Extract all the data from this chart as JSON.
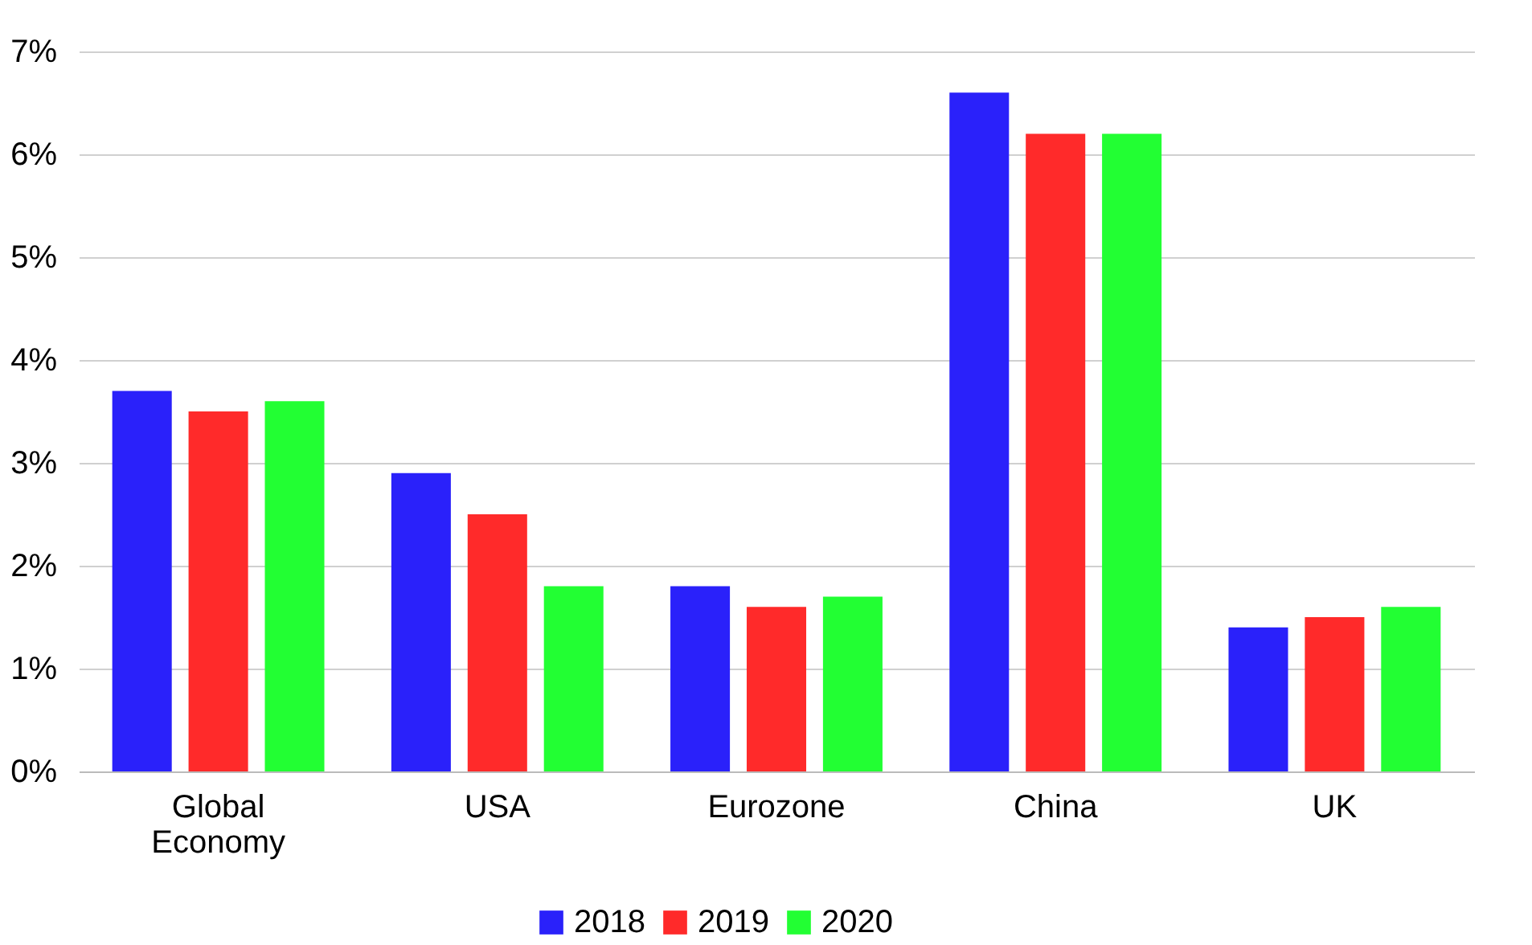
{
  "chart_data": {
    "type": "bar",
    "categories": [
      "Global Economy",
      "USA",
      "Eurozone",
      "China",
      "UK"
    ],
    "series": [
      {
        "name": "2018",
        "color": "#2a21fa",
        "values": [
          3.7,
          2.9,
          1.8,
          6.6,
          1.4
        ]
      },
      {
        "name": "2019",
        "color": "#ff2a2a",
        "values": [
          3.5,
          2.5,
          1.6,
          6.2,
          1.5
        ]
      },
      {
        "name": "2020",
        "color": "#22ff33",
        "values": [
          3.6,
          1.8,
          1.7,
          6.2,
          1.6
        ]
      }
    ],
    "ylim": [
      0,
      7
    ],
    "yticks": [
      {
        "value": 0,
        "label": "0%"
      },
      {
        "value": 1,
        "label": "1%"
      },
      {
        "value": 2,
        "label": "2%"
      },
      {
        "value": 3,
        "label": "3%"
      },
      {
        "value": 4,
        "label": "4%"
      },
      {
        "value": 5,
        "label": "5%"
      },
      {
        "value": 6,
        "label": "6%"
      },
      {
        "value": 7,
        "label": "7%"
      }
    ],
    "grid": "y",
    "legend": "bottom"
  }
}
